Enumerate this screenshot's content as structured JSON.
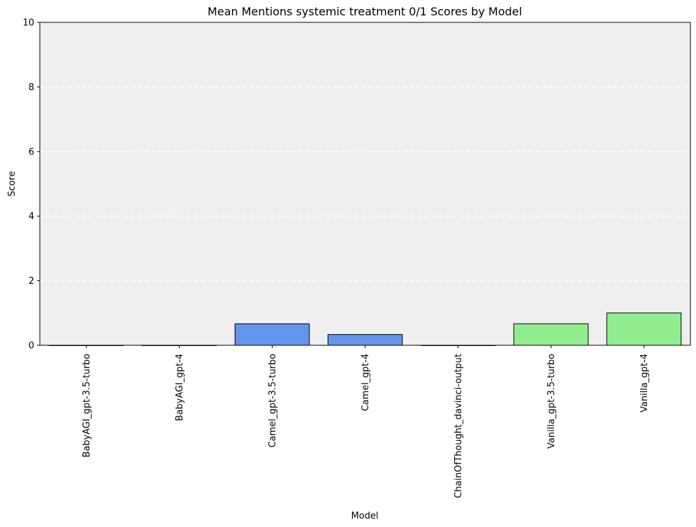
{
  "chart_data": {
    "type": "bar",
    "title": "Mean Mentions systemic treatment 0/1 Scores by Model",
    "xlabel": "Model",
    "ylabel": "Score",
    "ylim": [
      0,
      10
    ],
    "yticks": [
      0,
      2,
      4,
      6,
      8,
      10
    ],
    "grid": "y-dashed",
    "categories": [
      "BabyAGI_gpt-3.5-turbo",
      "BabyAGI_gpt-4",
      "Camel_gpt-3.5-turbo",
      "Camel_gpt-4",
      "ChainOfThought_davinci-output",
      "Vanilla_gpt-3.5-turbo",
      "Vanilla_gpt-4"
    ],
    "values": [
      0,
      0,
      0.667,
      0.333,
      0,
      0.667,
      1.0
    ],
    "bar_colors": [
      "#6495ed",
      "#6495ed",
      "#6495ed",
      "#6495ed",
      "#6495ed",
      "#90ee90",
      "#90ee90"
    ],
    "plot_background": "#efefef",
    "grid_color": "#ffffff",
    "bar_edge_color": "#000000"
  }
}
